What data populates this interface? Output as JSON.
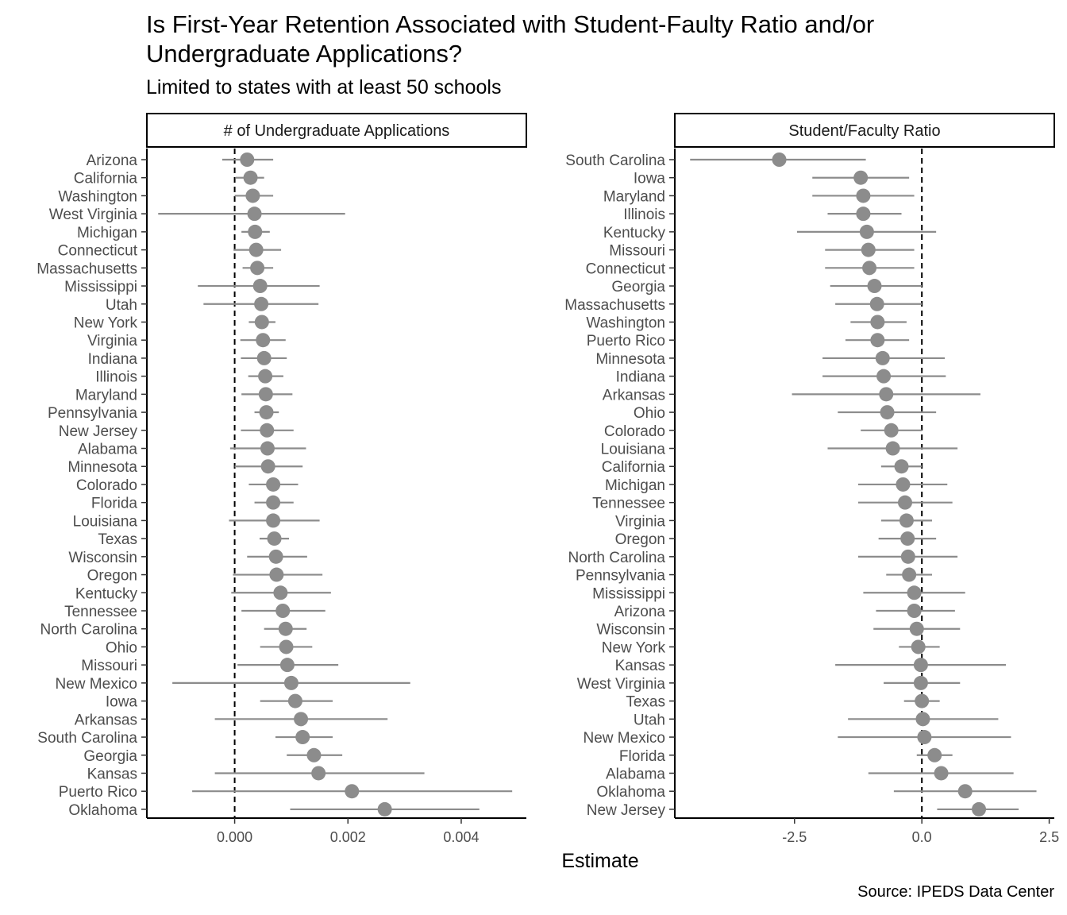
{
  "title": "Is First-Year Retention Associated with Student-Faulty Ratio and/or Undergraduate Applications?",
  "subtitle": "Limited to states with at least 50 schools",
  "caption": "Source: IPEDS Data Center",
  "xlabel": "Estimate",
  "colors": {
    "point": "#8c8c8c",
    "errorbar": "#8c8c8c",
    "refline": "#000000",
    "axis": "#000000"
  },
  "chart_data": [
    {
      "type": "scatter",
      "panel": "# of Undergraduate Applications",
      "reference_line_x": 0,
      "xlim": [
        -0.00155,
        0.00515
      ],
      "x_ticks": [
        0.0,
        0.002,
        0.004
      ],
      "x_tick_labels": [
        "0.000",
        "0.002",
        "0.004"
      ],
      "grid": false,
      "categories": [
        "Arizona",
        "California",
        "Washington",
        "West Virginia",
        "Michigan",
        "Connecticut",
        "Massachusetts",
        "Mississippi",
        "Utah",
        "New York",
        "Virginia",
        "Indiana",
        "Illinois",
        "Maryland",
        "Pennsylvania",
        "New Jersey",
        "Alabama",
        "Minnesota",
        "Colorado",
        "Florida",
        "Louisiana",
        "Texas",
        "Wisconsin",
        "Oregon",
        "Kentucky",
        "Tennessee",
        "North Carolina",
        "Ohio",
        "Missouri",
        "New Mexico",
        "Iowa",
        "Arkansas",
        "South Carolina",
        "Georgia",
        "Kansas",
        "Puerto Rico",
        "Oklahoma"
      ],
      "estimate": [
        0.00022,
        0.00028,
        0.00032,
        0.00035,
        0.00036,
        0.00038,
        0.0004,
        0.00045,
        0.00047,
        0.00048,
        0.0005,
        0.00052,
        0.00054,
        0.00055,
        0.00056,
        0.00057,
        0.00058,
        0.00059,
        0.00068,
        0.00068,
        0.00068,
        0.0007,
        0.00073,
        0.00074,
        0.00081,
        0.00085,
        0.0009,
        0.00091,
        0.00093,
        0.001,
        0.00107,
        0.00117,
        0.0012,
        0.0014,
        0.00148,
        0.00207,
        0.00265
      ],
      "lower": [
        -0.00022,
        2e-05,
        0.0,
        -0.00135,
        0.00012,
        -2e-05,
        0.00014,
        -0.00065,
        -0.00055,
        0.00025,
        0.0001,
        0.00011,
        0.00024,
        0.00012,
        0.00035,
        0.00011,
        -8e-05,
        0.0,
        0.00025,
        0.00035,
        -0.0001,
        0.00044,
        0.00022,
        -3e-05,
        -6e-05,
        0.00012,
        0.00052,
        0.00045,
        5e-05,
        -0.0011,
        0.00045,
        -0.00035,
        0.00072,
        0.00092,
        -0.00035,
        -0.00075,
        0.00098
      ],
      "upper": [
        0.00068,
        0.00052,
        0.00068,
        0.00195,
        0.00062,
        0.00082,
        0.00068,
        0.0015,
        0.00148,
        0.00072,
        0.0009,
        0.00092,
        0.00086,
        0.00102,
        0.00078,
        0.00104,
        0.00126,
        0.0012,
        0.00112,
        0.00104,
        0.0015,
        0.00096,
        0.00128,
        0.00155,
        0.0017,
        0.0016,
        0.00127,
        0.00137,
        0.00183,
        0.0031,
        0.00173,
        0.0027,
        0.00173,
        0.0019,
        0.00335,
        0.0049,
        0.00432
      ]
    },
    {
      "type": "scatter",
      "panel": "Student/Faculty Ratio",
      "reference_line_x": 0,
      "xlim": [
        -4.85,
        2.6
      ],
      "x_ticks": [
        -2.5,
        0.0,
        2.5
      ],
      "x_tick_labels": [
        "-2.5",
        "0.0",
        "2.5"
      ],
      "grid": false,
      "categories": [
        "South Carolina",
        "Iowa",
        "Maryland",
        "Illinois",
        "Kentucky",
        "Missouri",
        "Connecticut",
        "Georgia",
        "Massachusetts",
        "Washington",
        "Puerto Rico",
        "Minnesota",
        "Indiana",
        "Arkansas",
        "Ohio",
        "Colorado",
        "Louisiana",
        "California",
        "Michigan",
        "Tennessee",
        "Virginia",
        "Oregon",
        "North Carolina",
        "Pennsylvania",
        "Mississippi",
        "Arizona",
        "Wisconsin",
        "New York",
        "Kansas",
        "West Virginia",
        "Texas",
        "Utah",
        "New Mexico",
        "Florida",
        "Alabama",
        "Oklahoma",
        "New Jersey"
      ],
      "estimate": [
        -2.8,
        -1.2,
        -1.15,
        -1.15,
        -1.08,
        -1.05,
        -1.03,
        -0.93,
        -0.88,
        -0.87,
        -0.87,
        -0.77,
        -0.75,
        -0.7,
        -0.68,
        -0.6,
        -0.57,
        -0.4,
        -0.37,
        -0.33,
        -0.3,
        -0.28,
        -0.27,
        -0.25,
        -0.15,
        -0.15,
        -0.1,
        -0.07,
        -0.02,
        -0.02,
        0.0,
        0.02,
        0.05,
        0.25,
        0.38,
        0.85,
        1.12
      ],
      "lower": [
        -4.55,
        -2.15,
        -2.15,
        -1.85,
        -2.45,
        -1.9,
        -1.9,
        -1.8,
        -1.7,
        -1.4,
        -1.5,
        -1.95,
        -1.95,
        -2.55,
        -1.65,
        -1.2,
        -1.85,
        -0.8,
        -1.25,
        -1.25,
        -0.8,
        -0.85,
        -1.25,
        -0.7,
        -1.15,
        -0.9,
        -0.95,
        -0.45,
        -1.7,
        -0.75,
        -0.35,
        -1.45,
        -1.65,
        -0.1,
        -1.05,
        -0.55,
        0.3
      ],
      "upper": [
        -1.1,
        -0.25,
        -0.15,
        -0.4,
        0.28,
        -0.15,
        -0.15,
        0.0,
        0.0,
        -0.3,
        -0.25,
        0.45,
        0.47,
        1.15,
        0.28,
        0.0,
        0.7,
        0.0,
        0.5,
        0.6,
        0.2,
        0.28,
        0.7,
        0.2,
        0.85,
        0.65,
        0.75,
        0.35,
        1.65,
        0.75,
        0.35,
        1.5,
        1.75,
        0.6,
        1.8,
        2.25,
        1.9
      ]
    }
  ]
}
